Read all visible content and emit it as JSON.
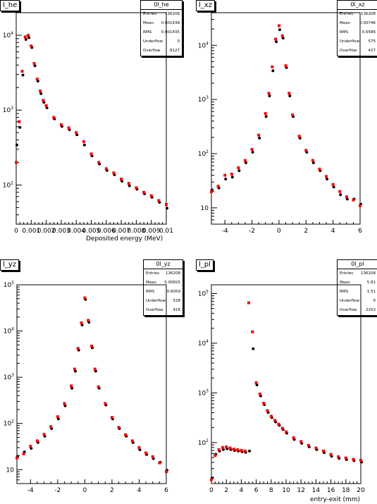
{
  "panels": [
    {
      "title": "l_he",
      "stats": {
        "name": "0l_he",
        "rows": [
          [
            "Entries",
            "136208"
          ],
          [
            "Mean",
            "0.001438"
          ],
          [
            "RMS",
            "0.001435"
          ],
          [
            "Underflow",
            "0"
          ],
          [
            "Overflow",
            "8127"
          ]
        ]
      },
      "xlabel": "Deposited energy (MeV)",
      "xticks": [
        "0",
        "0.001",
        "0.002",
        "0.003",
        "0.004",
        "0.005",
        "0.006",
        "0.007",
        "0.008",
        "0.009",
        "0.01"
      ]
    },
    {
      "title": "l_xz",
      "stats": {
        "name": "0l_xz",
        "rows": [
          [
            "Entries",
            "136208"
          ],
          [
            "Mean",
            "0.00746"
          ],
          [
            "RMS",
            "0.6586"
          ],
          [
            "Underflow",
            "575"
          ],
          [
            "Overflow",
            "427"
          ]
        ]
      },
      "xlabel": "",
      "xticks": [
        "-4",
        "-2",
        "0",
        "2",
        "4",
        "6"
      ]
    },
    {
      "title": "l_yz",
      "stats": {
        "name": "0l_yz",
        "rows": [
          [
            "Entries",
            "136208"
          ],
          [
            "Mean",
            "0.00825"
          ],
          [
            "RMS",
            "0.6059"
          ],
          [
            "Underflow",
            "528"
          ],
          [
            "Overflow",
            "416"
          ]
        ]
      },
      "xlabel": "",
      "xticks": [
        "-4",
        "-2",
        "0",
        "2",
        "4",
        "6"
      ]
    },
    {
      "title": "l_pl",
      "stats": {
        "name": "0l_pl",
        "rows": [
          [
            "Entries",
            "136208"
          ],
          [
            "Mean",
            "5.81"
          ],
          [
            "RMS",
            "1.51"
          ],
          [
            "Underflow",
            "0"
          ],
          [
            "Overflow",
            "2253"
          ]
        ]
      },
      "xlabel": "entry-exit (mm)",
      "xticks": [
        "0",
        "2",
        "4",
        "6",
        "8",
        "10",
        "12",
        "14",
        "16",
        "18",
        "20"
      ]
    }
  ],
  "colors": {
    "series_black": "#000000",
    "series_red": "#ff0000"
  },
  "chart_data": [
    {
      "type": "scatter",
      "title": "l_he",
      "xlabel": "Deposited energy (MeV)",
      "xlim": [
        0,
        0.01
      ],
      "ylim": [
        30,
        20000
      ],
      "yscale": "log",
      "yticks": [
        "10^2",
        "10^3",
        "10^4"
      ],
      "series": [
        {
          "color": "black",
          "x": [
            0,
            0.0002,
            0.0004,
            0.0006,
            0.0008,
            0.001,
            0.0012,
            0.0014,
            0.0016,
            0.0018,
            0.002,
            0.0025,
            0.003,
            0.0035,
            0.004,
            0.0045,
            0.005,
            0.0055,
            0.006,
            0.0065,
            0.007,
            0.0075,
            0.008,
            0.0085,
            0.009,
            0.0095,
            0.01
          ],
          "y": [
            350,
            600,
            3000,
            9000,
            9500,
            7000,
            4000,
            2500,
            1700,
            1300,
            1100,
            780,
            620,
            560,
            480,
            350,
            250,
            195,
            160,
            140,
            115,
            100,
            90,
            78,
            70,
            60,
            50
          ]
        },
        {
          "color": "red",
          "x": [
            0,
            0.0002,
            0.0004,
            0.0006,
            0.0008,
            0.001,
            0.0012,
            0.0014,
            0.0016,
            0.0018,
            0.002,
            0.0025,
            0.003,
            0.0035,
            0.004,
            0.0045,
            0.005,
            0.0055,
            0.006,
            0.0065,
            0.007,
            0.0075,
            0.008,
            0.0085,
            0.009,
            0.0095,
            0.01
          ],
          "y": [
            200,
            700,
            3300,
            9500,
            10000,
            7200,
            4200,
            2600,
            1800,
            1350,
            1150,
            800,
            640,
            580,
            500,
            380,
            260,
            200,
            165,
            145,
            120,
            105,
            92,
            80,
            72,
            62,
            55
          ]
        }
      ]
    },
    {
      "type": "scatter",
      "title": "l_xz",
      "xlim": [
        -5,
        6
      ],
      "ylim": [
        5,
        40000
      ],
      "yscale": "log",
      "yticks": [
        "10",
        "10^2",
        "10^3",
        "10^4"
      ],
      "series": [
        {
          "color": "black",
          "x": [
            -5,
            -4.5,
            -4,
            -3.5,
            -3,
            -2.5,
            -2,
            -1.5,
            -1,
            -0.75,
            -0.5,
            -0.25,
            0,
            0.25,
            0.5,
            0.75,
            1,
            1.5,
            2,
            2.5,
            3,
            3.5,
            4,
            4.5,
            5,
            5.5,
            6
          ],
          "y": [
            22,
            24,
            35,
            38,
            50,
            70,
            110,
            200,
            500,
            1200,
            3500,
            12000,
            20000,
            14000,
            4000,
            1200,
            500,
            200,
            110,
            70,
            50,
            35,
            25,
            18,
            15,
            15,
            12
          ]
        },
        {
          "color": "red",
          "x": [
            -5,
            -4.5,
            -4,
            -3.5,
            -3,
            -2.5,
            -2,
            -1.5,
            -1,
            -0.75,
            -0.5,
            -0.25,
            0,
            0.25,
            0.5,
            0.75,
            1,
            1.5,
            2,
            2.5,
            3,
            3.5,
            4,
            4.5,
            5,
            5.5,
            6
          ],
          "y": [
            20,
            25,
            40,
            42,
            55,
            75,
            120,
            220,
            550,
            1300,
            4000,
            13000,
            23000,
            15000,
            4200,
            1300,
            520,
            210,
            115,
            75,
            52,
            38,
            27,
            20,
            16,
            14,
            11
          ]
        }
      ]
    },
    {
      "type": "scatter",
      "title": "l_yz",
      "xlim": [
        -5,
        6
      ],
      "ylim": [
        5,
        100000
      ],
      "yscale": "log",
      "yticks": [
        "10",
        "10^2",
        "10^3",
        "10^4",
        "10^5"
      ],
      "series": [
        {
          "color": "black",
          "x": [
            -5,
            -4.5,
            -4,
            -3.5,
            -3,
            -2.5,
            -2,
            -1.5,
            -1,
            -0.75,
            -0.5,
            -0.25,
            0,
            0.25,
            0.5,
            0.75,
            1,
            1.5,
            2,
            2.5,
            3,
            3.5,
            4,
            4.5,
            5,
            5.5,
            6
          ],
          "y": [
            20,
            25,
            30,
            40,
            55,
            80,
            130,
            250,
            600,
            1400,
            4000,
            14000,
            50000,
            16000,
            4500,
            1400,
            600,
            260,
            130,
            80,
            55,
            40,
            28,
            22,
            18,
            15,
            10
          ]
        },
        {
          "color": "red",
          "x": [
            -5,
            -4.5,
            -4,
            -3.5,
            -3,
            -2.5,
            -2,
            -1.5,
            -1,
            -0.75,
            -0.5,
            -0.25,
            0,
            0.25,
            0.5,
            0.75,
            1,
            1.5,
            2,
            2.5,
            3,
            3.5,
            4,
            4.5,
            5,
            5.5,
            6
          ],
          "y": [
            18,
            22,
            32,
            42,
            58,
            85,
            140,
            270,
            650,
            1500,
            4200,
            15000,
            52000,
            17000,
            4700,
            1500,
            620,
            270,
            135,
            82,
            57,
            42,
            30,
            23,
            19,
            14,
            9
          ]
        }
      ]
    },
    {
      "type": "scatter",
      "title": "l_pl",
      "xlabel": "entry-exit (mm)",
      "xlim": [
        0,
        20
      ],
      "ylim": [
        15,
        150000
      ],
      "yscale": "log",
      "yticks": [
        "10^2",
        "10^3",
        "10^4",
        "10^5"
      ],
      "series": [
        {
          "color": "black",
          "x": [
            0,
            0.5,
            1,
            1.5,
            2,
            2.5,
            3,
            3.5,
            4,
            4.5,
            5,
            5.5,
            6,
            6.5,
            7,
            7.5,
            8,
            8.5,
            9,
            9.5,
            10,
            11,
            12,
            13,
            14,
            15,
            16,
            17,
            18,
            19,
            20
          ],
          "y": [
            20,
            60,
            70,
            75,
            78,
            75,
            72,
            70,
            68,
            66,
            70,
            8000,
            1500,
            900,
            600,
            420,
            330,
            270,
            230,
            190,
            160,
            120,
            100,
            85,
            75,
            65,
            55,
            50,
            47,
            45,
            42
          ]
        },
        {
          "color": "red",
          "x": [
            0,
            0.5,
            1,
            1.5,
            2,
            2.5,
            3,
            3.5,
            4,
            4.5,
            5,
            5.5,
            6,
            6.5,
            7,
            7.5,
            8,
            8.5,
            9,
            9.5,
            10,
            11,
            12,
            13,
            14,
            15,
            16,
            17,
            18,
            19,
            20
          ],
          "y": [
            18,
            55,
            72,
            80,
            82,
            78,
            74,
            72,
            70,
            68,
            65000,
            17000,
            1600,
            950,
            620,
            440,
            340,
            280,
            235,
            195,
            165,
            125,
            105,
            88,
            78,
            68,
            58,
            52,
            49,
            46,
            44
          ]
        }
      ]
    }
  ]
}
